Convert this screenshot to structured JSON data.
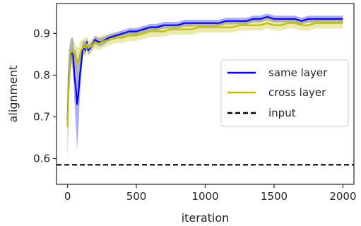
{
  "chart_data": {
    "type": "line",
    "xlabel": "iteration",
    "ylabel": "alignment",
    "xlim": [
      -80,
      2080
    ],
    "ylim": [
      0.538,
      0.972
    ],
    "x_ticks": [
      0,
      500,
      1000,
      1500,
      2000
    ],
    "y_ticks": [
      0.6,
      0.7,
      0.8,
      0.9
    ],
    "grid": false,
    "legend_position": "center-right",
    "series": [
      {
        "name": "same layer",
        "color": "#0000ee",
        "style": "solid",
        "band": true,
        "x": [
          0,
          10,
          20,
          30,
          40,
          50,
          60,
          70,
          80,
          90,
          100,
          110,
          120,
          130,
          140,
          150,
          175,
          200,
          225,
          250,
          300,
          350,
          400,
          450,
          500,
          550,
          600,
          650,
          700,
          750,
          800,
          850,
          900,
          950,
          1000,
          1050,
          1100,
          1150,
          1200,
          1250,
          1300,
          1350,
          1400,
          1450,
          1500,
          1550,
          1600,
          1650,
          1700,
          1750,
          1800,
          1850,
          1900,
          1950,
          2000
        ],
        "y": [
          0.69,
          0.8,
          0.84,
          0.86,
          0.85,
          0.8,
          0.77,
          0.73,
          0.76,
          0.8,
          0.83,
          0.86,
          0.87,
          0.86,
          0.88,
          0.86,
          0.87,
          0.885,
          0.88,
          0.88,
          0.89,
          0.895,
          0.9,
          0.905,
          0.905,
          0.91,
          0.915,
          0.915,
          0.92,
          0.92,
          0.92,
          0.925,
          0.925,
          0.925,
          0.925,
          0.925,
          0.925,
          0.93,
          0.93,
          0.93,
          0.93,
          0.935,
          0.935,
          0.94,
          0.935,
          0.935,
          0.935,
          0.935,
          0.93,
          0.935,
          0.935,
          0.935,
          0.935,
          0.935,
          0.935
        ],
        "band_halfwidth": [
          0.1,
          0.06,
          0.04,
          0.03,
          0.04,
          0.06,
          0.09,
          0.11,
          0.08,
          0.05,
          0.03,
          0.02,
          0.015,
          0.015,
          0.012,
          0.012,
          0.01,
          0.01,
          0.01,
          0.01,
          0.008,
          0.008,
          0.008,
          0.008,
          0.008,
          0.008,
          0.008,
          0.008,
          0.008,
          0.008,
          0.008,
          0.008,
          0.008,
          0.008,
          0.008,
          0.008,
          0.008,
          0.008,
          0.008,
          0.008,
          0.008,
          0.008,
          0.008,
          0.008,
          0.008,
          0.008,
          0.008,
          0.008,
          0.008,
          0.008,
          0.008,
          0.008,
          0.008,
          0.008,
          0.008
        ]
      },
      {
        "name": "cross layer",
        "color": "#bfbf00",
        "style": "solid",
        "band": true,
        "x": [
          0,
          10,
          20,
          30,
          40,
          50,
          60,
          70,
          80,
          90,
          100,
          110,
          120,
          130,
          140,
          150,
          175,
          200,
          225,
          250,
          300,
          350,
          400,
          450,
          500,
          550,
          600,
          650,
          700,
          750,
          800,
          850,
          900,
          950,
          1000,
          1050,
          1100,
          1150,
          1200,
          1250,
          1300,
          1350,
          1400,
          1450,
          1500,
          1550,
          1600,
          1650,
          1700,
          1750,
          1800,
          1850,
          1900,
          1950,
          2000
        ],
        "y": [
          0.675,
          0.79,
          0.85,
          0.86,
          0.855,
          0.85,
          0.84,
          0.83,
          0.835,
          0.85,
          0.86,
          0.865,
          0.87,
          0.865,
          0.875,
          0.865,
          0.87,
          0.88,
          0.875,
          0.88,
          0.885,
          0.89,
          0.89,
          0.895,
          0.895,
          0.9,
          0.905,
          0.905,
          0.905,
          0.91,
          0.91,
          0.91,
          0.91,
          0.915,
          0.915,
          0.915,
          0.915,
          0.915,
          0.915,
          0.92,
          0.92,
          0.92,
          0.92,
          0.925,
          0.92,
          0.92,
          0.925,
          0.925,
          0.92,
          0.92,
          0.925,
          0.925,
          0.925,
          0.925,
          0.925
        ],
        "band_halfwidth": [
          0.02,
          0.05,
          0.04,
          0.03,
          0.03,
          0.03,
          0.03,
          0.04,
          0.03,
          0.03,
          0.025,
          0.02,
          0.02,
          0.02,
          0.018,
          0.018,
          0.015,
          0.015,
          0.015,
          0.015,
          0.013,
          0.013,
          0.013,
          0.013,
          0.013,
          0.013,
          0.013,
          0.013,
          0.013,
          0.013,
          0.013,
          0.013,
          0.013,
          0.013,
          0.013,
          0.013,
          0.013,
          0.013,
          0.013,
          0.013,
          0.013,
          0.013,
          0.013,
          0.013,
          0.013,
          0.013,
          0.013,
          0.013,
          0.013,
          0.013,
          0.013,
          0.013,
          0.013,
          0.013,
          0.013
        ]
      },
      {
        "name": "input",
        "color": "#000000",
        "style": "dashed",
        "band": false,
        "x": [
          -80,
          2080
        ],
        "y": [
          0.585,
          0.585
        ]
      }
    ]
  }
}
